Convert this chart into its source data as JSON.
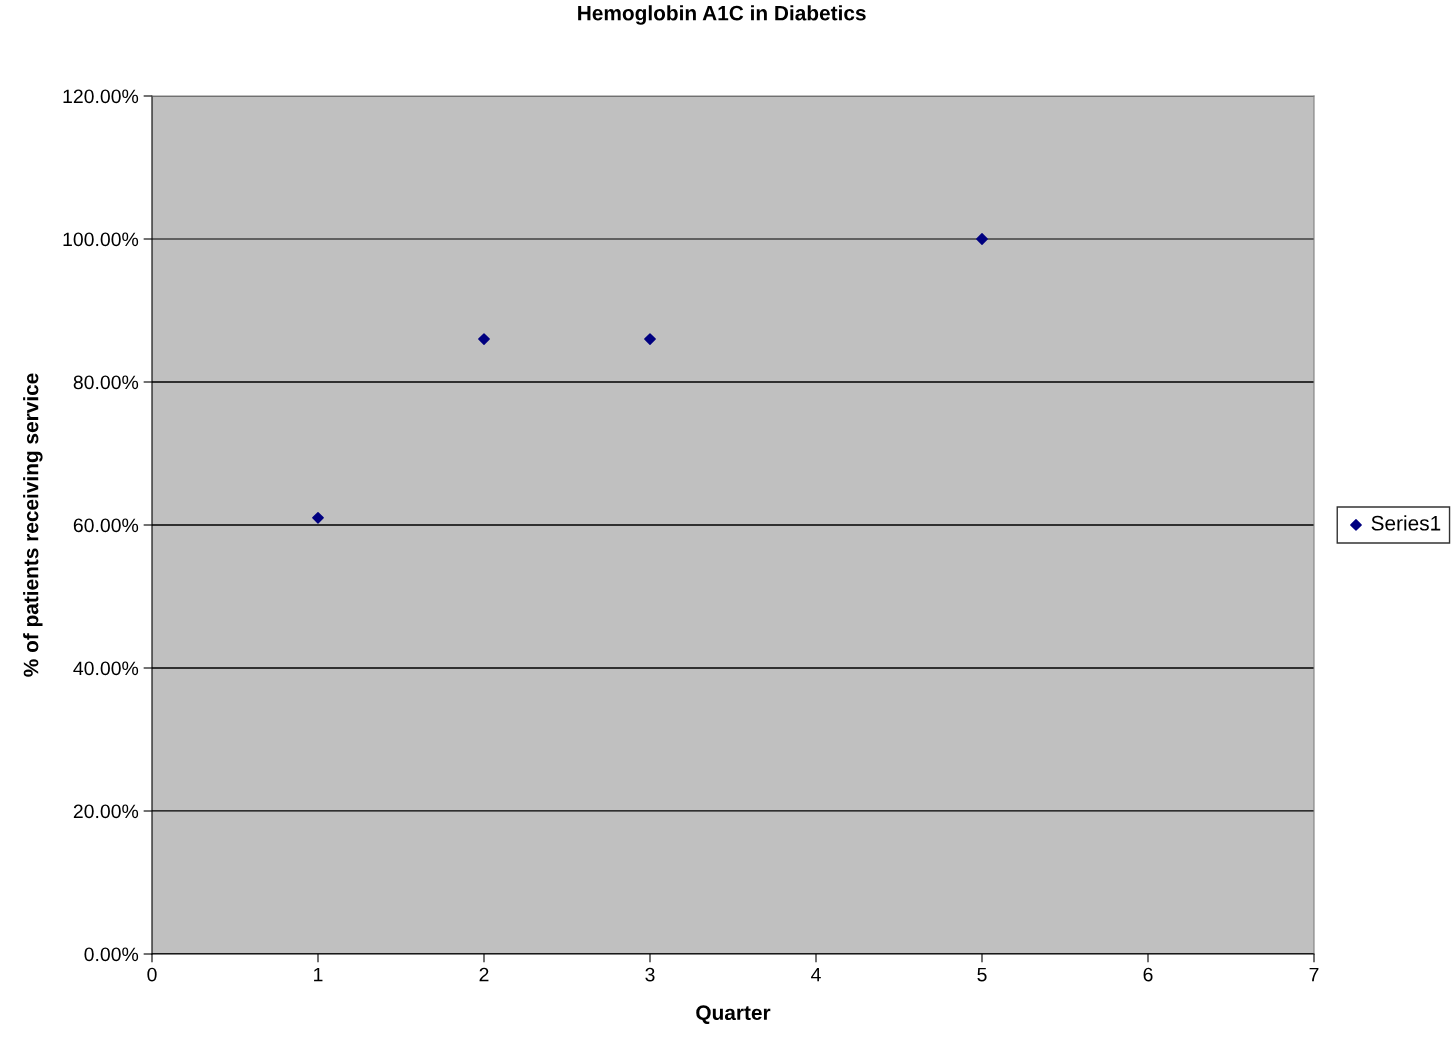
{
  "chart_data": {
    "type": "scatter",
    "title": "Hemoglobin A1C in Diabetics",
    "xlabel": "Quarter",
    "ylabel": "% of patients receiving service",
    "x": [
      1,
      2,
      3,
      5
    ],
    "series": [
      {
        "name": "Series1",
        "color": "#000080",
        "values": [
          61,
          86,
          86,
          100
        ]
      }
    ],
    "xlim": [
      0,
      7
    ],
    "xticks": [
      0,
      1,
      2,
      3,
      4,
      5,
      6,
      7
    ],
    "ylim": [
      0,
      120
    ],
    "yticks": [
      {
        "value": 0,
        "label": "0.00%"
      },
      {
        "value": 20,
        "label": "20.00%"
      },
      {
        "value": 40,
        "label": "40.00%"
      },
      {
        "value": 60,
        "label": "60.00%"
      },
      {
        "value": 80,
        "label": "80.00%"
      },
      {
        "value": 100,
        "label": "100.00%"
      },
      {
        "value": 120,
        "label": "120.00%"
      }
    ],
    "grid": "y",
    "legend": "right",
    "marker": "diamond"
  }
}
